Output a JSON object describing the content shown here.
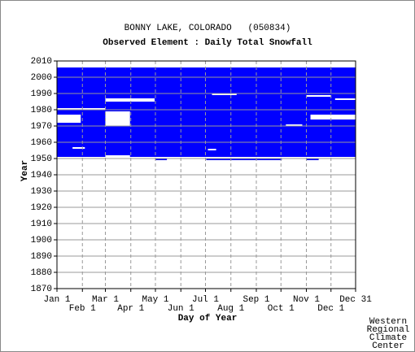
{
  "chart_data": {
    "type": "availability",
    "title": "BONNY LAKE, COLORADO   (050834)",
    "subtitle": "Observed Element : Daily Total Snowfall",
    "xlabel": "Day of Year",
    "ylabel": "Year",
    "credit": [
      "Western",
      "Regional",
      "Climate",
      "Center"
    ],
    "color": "#0000ff",
    "xlim": [
      1,
      365
    ],
    "ylim": [
      1870,
      2010
    ],
    "xticks": [
      {
        "value": 1,
        "label": "Jan 1"
      },
      {
        "value": 32,
        "label": "Feb 1"
      },
      {
        "value": 60,
        "label": "Mar 1"
      },
      {
        "value": 91,
        "label": "Apr 1"
      },
      {
        "value": 121,
        "label": "May 1"
      },
      {
        "value": 152,
        "label": "Jun 1"
      },
      {
        "value": 182,
        "label": "Jul 1"
      },
      {
        "value": 213,
        "label": "Aug 1"
      },
      {
        "value": 244,
        "label": "Sep 1"
      },
      {
        "value": 274,
        "label": "Oct 1"
      },
      {
        "value": 305,
        "label": "Nov 1"
      },
      {
        "value": 335,
        "label": "Dec 1"
      },
      {
        "value": 365,
        "label": "Dec 31"
      }
    ],
    "yticks": [
      1870,
      1880,
      1890,
      1900,
      1910,
      1920,
      1930,
      1940,
      1950,
      1960,
      1970,
      1980,
      1990,
      2000,
      2010
    ],
    "grid": true,
    "present": [
      [
        1,
        365,
        1951,
        2006
      ],
      [
        121,
        135,
        1949,
        1950
      ],
      [
        183,
        275,
        1949,
        1950
      ],
      [
        305,
        320,
        1949,
        1950
      ]
    ],
    "missing": [
      [
        1,
        30,
        1972,
        1977
      ],
      [
        60,
        90,
        1970,
        1979
      ],
      [
        60,
        120,
        1985,
        1987
      ],
      [
        310,
        365,
        1974,
        1977
      ],
      [
        1,
        60,
        1980,
        1981
      ],
      [
        305,
        335,
        1988,
        1989
      ],
      [
        20,
        35,
        1956,
        1957
      ],
      [
        185,
        195,
        1955,
        1956
      ],
      [
        190,
        220,
        1989,
        1990
      ],
      [
        60,
        90,
        1951,
        1952
      ],
      [
        280,
        300,
        1970,
        1971
      ],
      [
        340,
        365,
        1986,
        1987
      ]
    ]
  }
}
